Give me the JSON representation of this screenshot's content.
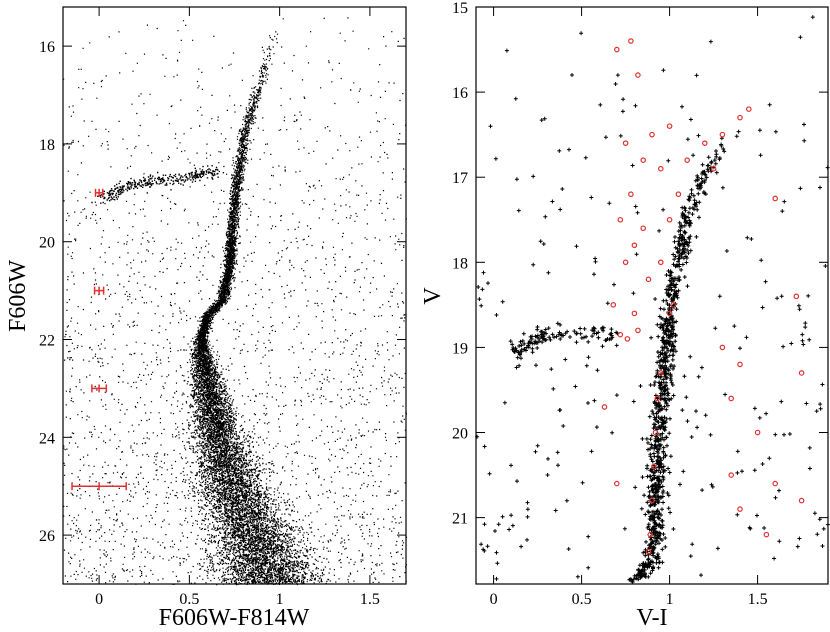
{
  "chart_data": [
    {
      "type": "scatter",
      "title": "",
      "xlabel": "F606W-F814W",
      "ylabel": "F606W",
      "xlim": [
        -0.2,
        1.7
      ],
      "ylim": [
        27.0,
        15.2
      ],
      "y_inverted": true,
      "x_ticks": [
        {
          "value": 0,
          "label": "0"
        },
        {
          "value": 0.5,
          "label": "0.5"
        },
        {
          "value": 1,
          "label": "1"
        },
        {
          "value": 1.5,
          "label": "1.5"
        }
      ],
      "y_ticks": [
        {
          "value": 16,
          "label": "16"
        },
        {
          "value": 18,
          "label": "18"
        },
        {
          "value": 20,
          "label": "20"
        },
        {
          "value": 22,
          "label": "22"
        },
        {
          "value": 24,
          "label": "24"
        },
        {
          "value": 26,
          "label": "26"
        }
      ],
      "series": [
        {
          "color": "#000000",
          "marker": "dot",
          "features": {
            "main_sequence": [
              [
                0.95,
                27.0
              ],
              [
                0.85,
                26.0
              ],
              [
                0.74,
                25.0
              ],
              [
                0.66,
                24.0
              ],
              [
                0.6,
                23.0
              ],
              [
                0.56,
                22.0
              ],
              [
                0.6,
                21.5
              ],
              [
                0.68,
                21.2
              ],
              [
                0.72,
                20.5
              ],
              [
                0.74,
                19.5
              ],
              [
                0.76,
                18.8
              ],
              [
                0.78,
                18.4
              ],
              [
                0.8,
                17.8
              ],
              [
                0.85,
                17.2
              ],
              [
                0.9,
                16.6
              ],
              [
                0.95,
                16.0
              ],
              [
                1.0,
                15.6
              ]
            ],
            "horizontal_branch": [
              [
                0.0,
                19.1
              ],
              [
                0.1,
                18.95
              ],
              [
                0.2,
                18.8
              ],
              [
                0.3,
                18.75
              ],
              [
                0.45,
                18.7
              ],
              [
                0.55,
                18.6
              ],
              [
                0.65,
                18.55
              ]
            ]
          }
        },
        {
          "name": "",
          "color": "#e03030",
          "marker": "errorbar",
          "points": [
            {
              "x": 0,
              "y": 19.0,
              "xerr": 0.02
            },
            {
              "x": 0,
              "y": 21.0,
              "xerr": 0.025
            },
            {
              "x": 0,
              "y": 23.0,
              "xerr": 0.04
            },
            {
              "x": 0,
              "y": 25.0,
              "xerr": 0.15
            }
          ]
        }
      ],
      "grid": false,
      "legend": "none"
    },
    {
      "type": "scatter",
      "title": "",
      "xlabel": "V-I",
      "ylabel": "V",
      "xlim": [
        -0.1,
        1.9
      ],
      "ylim": [
        21.78,
        15.0
      ],
      "y_inverted": true,
      "x_ticks": [
        {
          "value": 0,
          "label": "0"
        },
        {
          "value": 0.5,
          "label": "0.5"
        },
        {
          "value": 1,
          "label": "1"
        },
        {
          "value": 1.5,
          "label": "1.5"
        }
      ],
      "y_ticks": [
        {
          "value": 15,
          "label": "15"
        },
        {
          "value": 16,
          "label": "16"
        },
        {
          "value": 17,
          "label": "17"
        },
        {
          "value": 18,
          "label": "18"
        },
        {
          "value": 19,
          "label": "19"
        },
        {
          "value": 20,
          "label": "20"
        },
        {
          "value": 21,
          "label": "21"
        }
      ],
      "series": [
        {
          "color": "#000000",
          "marker": "plus",
          "features": {
            "main_sequence": [
              [
                0.8,
                21.75
              ],
              [
                0.9,
                21.5
              ],
              [
                0.92,
                21.0
              ],
              [
                0.93,
                20.5
              ],
              [
                0.94,
                20.0
              ],
              [
                0.96,
                19.5
              ],
              [
                0.98,
                19.0
              ],
              [
                1.0,
                18.5
              ],
              [
                1.05,
                18.0
              ],
              [
                1.1,
                17.5
              ],
              [
                1.18,
                17.0
              ],
              [
                1.28,
                16.7
              ],
              [
                1.35,
                16.5
              ]
            ],
            "horizontal_branch": [
              [
                0.12,
                19.05
              ],
              [
                0.2,
                18.95
              ],
              [
                0.3,
                18.8
              ],
              [
                0.55,
                18.85
              ],
              [
                0.7,
                18.85
              ]
            ]
          }
        },
        {
          "color": "#e03030",
          "marker": "open-circle",
          "points": [
            [
              0.7,
              15.5
            ],
            [
              0.78,
              15.4
            ],
            [
              0.82,
              15.8
            ],
            [
              0.75,
              16.6
            ],
            [
              0.85,
              16.8
            ],
            [
              0.78,
              17.2
            ],
            [
              0.72,
              17.5
            ],
            [
              0.8,
              17.8
            ],
            [
              0.75,
              18.0
            ],
            [
              0.88,
              18.2
            ],
            [
              0.68,
              18.5
            ],
            [
              0.95,
              18.0
            ],
            [
              1.0,
              17.5
            ],
            [
              1.05,
              17.2
            ],
            [
              1.1,
              16.8
            ],
            [
              1.2,
              16.6
            ],
            [
              1.25,
              16.9
            ],
            [
              1.3,
              16.5
            ],
            [
              1.4,
              16.3
            ],
            [
              1.45,
              16.2
            ],
            [
              0.9,
              16.5
            ],
            [
              0.95,
              16.9
            ],
            [
              1.0,
              16.4
            ],
            [
              0.85,
              17.6
            ],
            [
              0.8,
              18.6
            ],
            [
              0.72,
              18.85
            ],
            [
              0.76,
              18.9
            ],
            [
              0.82,
              18.8
            ],
            [
              1.0,
              18.6
            ],
            [
              1.02,
              18.5
            ],
            [
              0.95,
              19.3
            ],
            [
              0.93,
              19.6
            ],
            [
              0.92,
              20.0
            ],
            [
              0.91,
              20.4
            ],
            [
              0.9,
              20.8
            ],
            [
              0.89,
              21.2
            ],
            [
              0.88,
              21.4
            ],
            [
              1.3,
              19.0
            ],
            [
              1.4,
              19.2
            ],
            [
              1.35,
              19.6
            ],
            [
              1.5,
              20.0
            ],
            [
              1.35,
              20.5
            ],
            [
              1.4,
              20.9
            ],
            [
              1.72,
              18.4
            ],
            [
              1.75,
              19.3
            ],
            [
              1.6,
              17.25
            ],
            [
              0.63,
              19.7
            ],
            [
              1.6,
              20.6
            ],
            [
              1.75,
              20.8
            ],
            [
              1.55,
              21.2
            ],
            [
              0.7,
              20.6
            ]
          ]
        }
      ],
      "grid": false,
      "legend": "none"
    }
  ]
}
